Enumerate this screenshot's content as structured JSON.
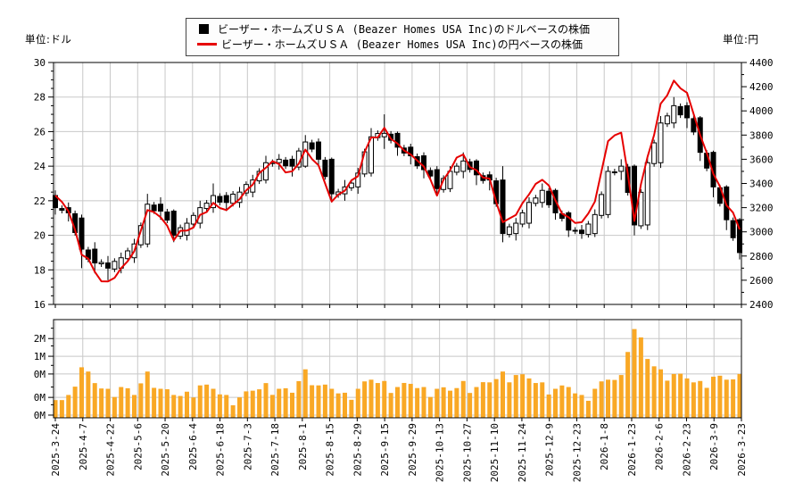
{
  "header": {
    "unit_left": "単位:ドル",
    "unit_right": "単位:円",
    "legend": [
      {
        "symbol": "filled-square",
        "color": "#000000",
        "label": "ビーザー・ホームズＵＳＡ (Beazer Homes USA Inc)のドルベースの株価"
      },
      {
        "symbol": "red-line",
        "color": "#e60000",
        "label": "ビーザー・ホームズＵＳＡ (Beazer Homes USA Inc)の円ベースの株価"
      }
    ]
  },
  "colors": {
    "candle_up_fill": "#ffffff",
    "candle_down_fill": "#000000",
    "candle_stroke": "#000000",
    "yen_line": "#e60000",
    "volume_bar": "#f9a825",
    "gridline": "#c8c8c8",
    "frame": "#000000"
  },
  "chart_data": [
    {
      "type": "candlestick",
      "panel": "price",
      "x_tick_labels": [
        "2025-3-24",
        "2025-4-7",
        "2025-4-22",
        "2025-5-6",
        "2025-5-20",
        "2025-6-4",
        "2025-6-18",
        "2025-7-3",
        "2025-7-18",
        "2025-8-1",
        "2025-8-15",
        "2025-8-29",
        "2025-9-15",
        "2025-9-29",
        "2025-10-13",
        "2025-10-27",
        "2025-11-10",
        "2025-11-24",
        "2025-12-9",
        "2025-12-23",
        "2026-1-8",
        "2026-1-23",
        "2026-2-6",
        "2026-2-23",
        "2026-3-9",
        "2026-3-23"
      ],
      "left_axis": {
        "title": "単位:ドル",
        "min": 16,
        "max": 30,
        "tick_step": 2,
        "minor_step": 0.5,
        "tick_labels": [
          "30",
          "28",
          "26",
          "24",
          "22",
          "20",
          "18",
          "16"
        ]
      },
      "right_axis": {
        "title": "単位:円",
        "min": 2400,
        "max": 4400,
        "tick_step": 200,
        "minor_step": 100,
        "tick_labels": [
          "4400",
          "4200",
          "4000",
          "3800",
          "3600",
          "3400",
          "3200",
          "3000",
          "2800",
          "2600",
          "2400"
        ]
      },
      "grid": true,
      "legend_position": "top-center",
      "series": [
        {
          "name": "ビーザー・ホームズＵＳＡ (Beazer Homes USA Inc)のドルベースの株価",
          "type": "candlestick",
          "axis": "left",
          "points": [
            {
              "date": "2025-3-24",
              "o": 22.3,
              "h": 22.6,
              "l": 21.2,
              "c": 21.6
            },
            {
              "date": "2025-3-31",
              "o": 21.6,
              "h": 21.9,
              "l": 20.8,
              "c": 21.3
            },
            {
              "date": "2025-4-7",
              "o": 21.0,
              "h": 21.2,
              "l": 18.1,
              "c": 19.2
            },
            {
              "date": "2025-4-14",
              "o": 19.2,
              "h": 19.6,
              "l": 17.8,
              "c": 18.4
            },
            {
              "date": "2025-4-21",
              "o": 18.4,
              "h": 18.8,
              "l": 17.4,
              "c": 18.1
            },
            {
              "date": "2025-4-28",
              "o": 18.1,
              "h": 19.0,
              "l": 17.8,
              "c": 18.7
            },
            {
              "date": "2025-5-5",
              "o": 18.7,
              "h": 19.8,
              "l": 18.4,
              "c": 19.5
            },
            {
              "date": "2025-5-12",
              "o": 19.5,
              "h": 22.4,
              "l": 19.3,
              "c": 21.8
            },
            {
              "date": "2025-5-19",
              "o": 21.8,
              "h": 22.2,
              "l": 20.9,
              "c": 21.4
            },
            {
              "date": "2025-5-26",
              "o": 21.4,
              "h": 21.5,
              "l": 19.6,
              "c": 20.0
            },
            {
              "date": "2025-6-2",
              "o": 20.0,
              "h": 21.0,
              "l": 19.7,
              "c": 20.7
            },
            {
              "date": "2025-6-9",
              "o": 20.7,
              "h": 22.0,
              "l": 20.4,
              "c": 21.6
            },
            {
              "date": "2025-6-16",
              "o": 21.6,
              "h": 23.0,
              "l": 21.3,
              "c": 22.3
            },
            {
              "date": "2025-6-23",
              "o": 22.3,
              "h": 22.5,
              "l": 21.4,
              "c": 21.9
            },
            {
              "date": "2025-6-30",
              "o": 21.9,
              "h": 22.8,
              "l": 21.6,
              "c": 22.5
            },
            {
              "date": "2025-7-7",
              "o": 22.5,
              "h": 23.5,
              "l": 22.2,
              "c": 23.2
            },
            {
              "date": "2025-7-14",
              "o": 23.2,
              "h": 24.6,
              "l": 23.0,
              "c": 24.2
            },
            {
              "date": "2025-7-21",
              "o": 24.2,
              "h": 24.7,
              "l": 23.8,
              "c": 24.4
            },
            {
              "date": "2025-7-28",
              "o": 24.4,
              "h": 24.6,
              "l": 23.4,
              "c": 24.0
            },
            {
              "date": "2025-8-4",
              "o": 24.0,
              "h": 25.8,
              "l": 23.9,
              "c": 25.4
            },
            {
              "date": "2025-8-11",
              "o": 25.4,
              "h": 25.6,
              "l": 24.0,
              "c": 24.4
            },
            {
              "date": "2025-8-18",
              "o": 24.4,
              "h": 24.5,
              "l": 21.9,
              "c": 22.4
            },
            {
              "date": "2025-8-25",
              "o": 22.4,
              "h": 23.2,
              "l": 22.0,
              "c": 22.8
            },
            {
              "date": "2025-9-1",
              "o": 22.8,
              "h": 23.9,
              "l": 22.4,
              "c": 23.6
            },
            {
              "date": "2025-9-8",
              "o": 23.6,
              "h": 26.2,
              "l": 23.4,
              "c": 25.7
            },
            {
              "date": "2025-9-15",
              "o": 25.7,
              "h": 27.0,
              "l": 25.0,
              "c": 25.9
            },
            {
              "date": "2025-9-22",
              "o": 25.9,
              "h": 26.0,
              "l": 24.6,
              "c": 25.1
            },
            {
              "date": "2025-9-29",
              "o": 25.1,
              "h": 25.3,
              "l": 24.1,
              "c": 24.6
            },
            {
              "date": "2025-10-6",
              "o": 24.6,
              "h": 24.8,
              "l": 23.3,
              "c": 23.8
            },
            {
              "date": "2025-10-13",
              "o": 23.8,
              "h": 24.0,
              "l": 22.3,
              "c": 22.7
            },
            {
              "date": "2025-10-20",
              "o": 22.7,
              "h": 24.0,
              "l": 22.5,
              "c": 23.7
            },
            {
              "date": "2025-10-27",
              "o": 23.7,
              "h": 24.8,
              "l": 23.3,
              "c": 24.3
            },
            {
              "date": "2025-11-3",
              "o": 24.3,
              "h": 24.4,
              "l": 22.9,
              "c": 23.5
            },
            {
              "date": "2025-11-10",
              "o": 23.5,
              "h": 23.7,
              "l": 22.6,
              "c": 23.2
            },
            {
              "date": "2025-11-17",
              "o": 23.2,
              "h": 24.0,
              "l": 19.6,
              "c": 20.1
            },
            {
              "date": "2025-11-24",
              "o": 20.1,
              "h": 21.0,
              "l": 19.7,
              "c": 20.7
            },
            {
              "date": "2025-12-1",
              "o": 20.7,
              "h": 22.2,
              "l": 20.4,
              "c": 21.9
            },
            {
              "date": "2025-12-8",
              "o": 21.9,
              "h": 23.0,
              "l": 21.6,
              "c": 22.6
            },
            {
              "date": "2025-12-15",
              "o": 22.6,
              "h": 22.7,
              "l": 20.9,
              "c": 21.3
            },
            {
              "date": "2025-12-22",
              "o": 21.3,
              "h": 21.4,
              "l": 19.9,
              "c": 20.3
            },
            {
              "date": "2025-12-29",
              "o": 20.3,
              "h": 20.6,
              "l": 19.8,
              "c": 20.1
            },
            {
              "date": "2026-1-5",
              "o": 20.1,
              "h": 21.5,
              "l": 19.9,
              "c": 21.2
            },
            {
              "date": "2026-1-12",
              "o": 21.2,
              "h": 24.0,
              "l": 21.0,
              "c": 23.7
            },
            {
              "date": "2026-1-19",
              "o": 23.7,
              "h": 24.4,
              "l": 23.2,
              "c": 24.0
            },
            {
              "date": "2026-1-26",
              "o": 24.0,
              "h": 24.1,
              "l": 20.0,
              "c": 20.6
            },
            {
              "date": "2026-2-2",
              "o": 20.6,
              "h": 24.5,
              "l": 20.3,
              "c": 24.2
            },
            {
              "date": "2026-2-9",
              "o": 24.2,
              "h": 26.9,
              "l": 23.9,
              "c": 26.5
            },
            {
              "date": "2026-2-16",
              "o": 26.5,
              "h": 28.0,
              "l": 26.2,
              "c": 27.5
            },
            {
              "date": "2026-2-23",
              "o": 27.5,
              "h": 27.7,
              "l": 26.2,
              "c": 26.8
            },
            {
              "date": "2026-3-2",
              "o": 26.8,
              "h": 26.9,
              "l": 24.3,
              "c": 24.8
            },
            {
              "date": "2026-3-9",
              "o": 24.8,
              "h": 24.9,
              "l": 22.2,
              "c": 22.8
            },
            {
              "date": "2026-3-16",
              "o": 22.8,
              "h": 22.9,
              "l": 20.3,
              "c": 20.9
            },
            {
              "date": "2026-3-23",
              "o": 20.9,
              "h": 21.0,
              "l": 18.6,
              "c": 19.0
            }
          ]
        },
        {
          "name": "ビーザー・ホームズＵＳＡ (Beazer Homes USA Inc)の円ベースの株価",
          "type": "line",
          "axis": "right",
          "color": "#e60000",
          "values": [
            3300,
            3170,
            2810,
            2670,
            2590,
            2700,
            2840,
            3180,
            3120,
            2930,
            3010,
            3140,
            3240,
            3180,
            3270,
            3390,
            3530,
            3560,
            3500,
            3680,
            3550,
            3250,
            3340,
            3460,
            3780,
            3860,
            3730,
            3640,
            3540,
            3300,
            3510,
            3640,
            3510,
            3440,
            3080,
            3140,
            3310,
            3430,
            3260,
            3120,
            3080,
            3250,
            3750,
            3820,
            3090,
            3620,
            4060,
            4250,
            4150,
            3800,
            3480,
            3220,
            3020
          ]
        }
      ]
    },
    {
      "type": "bar",
      "panel": "volume",
      "name": "出来高",
      "color": "#f9a825",
      "scale": "log",
      "y_tick_labels": [
        "2M",
        "1M",
        "0M",
        "0M",
        "0M"
      ],
      "y_tick_values_millions": [
        2,
        1,
        0.5,
        0.2,
        0.1
      ],
      "values_millions": [
        0.18,
        0.22,
        0.65,
        0.35,
        0.28,
        0.3,
        0.22,
        0.55,
        0.28,
        0.22,
        0.25,
        0.32,
        0.28,
        0.22,
        0.2,
        0.26,
        0.35,
        0.28,
        0.24,
        0.6,
        0.32,
        0.28,
        0.24,
        0.28,
        0.4,
        0.38,
        0.3,
        0.34,
        0.3,
        0.28,
        0.26,
        0.38,
        0.3,
        0.36,
        0.55,
        0.48,
        0.42,
        0.36,
        0.28,
        0.3,
        0.22,
        0.28,
        0.4,
        0.48,
        2.9,
        0.9,
        0.6,
        0.5,
        0.42,
        0.38,
        0.45,
        0.4,
        0.5
      ]
    }
  ]
}
